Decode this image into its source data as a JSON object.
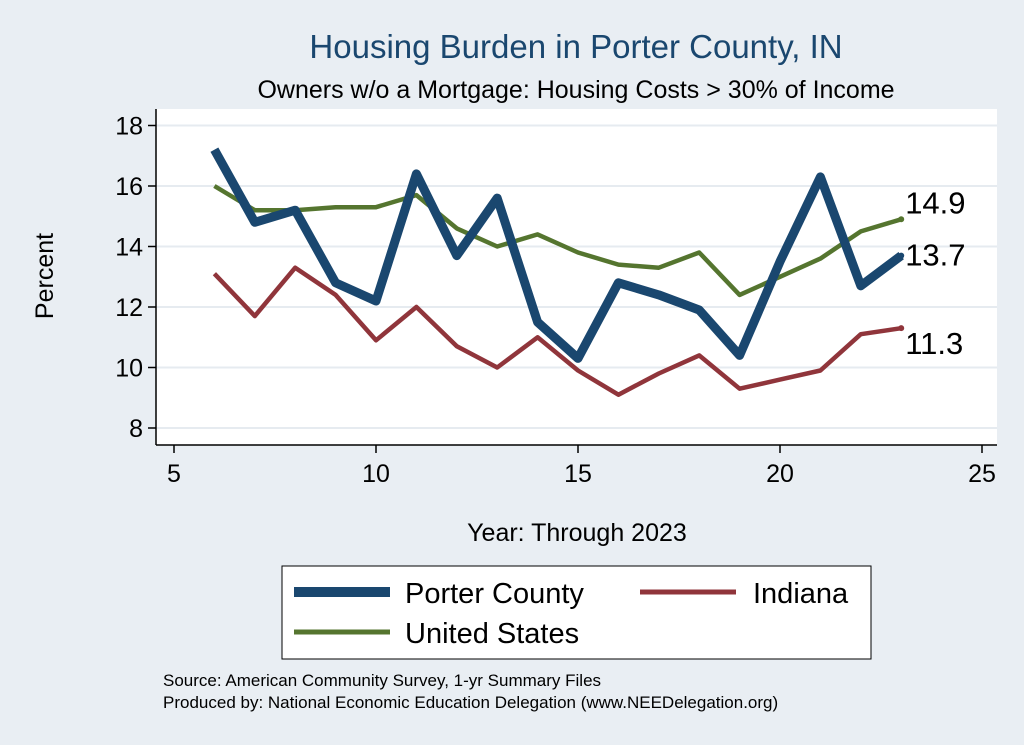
{
  "chart_data": {
    "type": "line",
    "title": "Housing Burden in Porter County, IN",
    "subtitle": "Owners w/o a Mortgage: Housing Costs > 30% of Income",
    "xlabel": "Year: Through 2023",
    "ylabel": "Percent",
    "xlim": [
      5,
      25
    ],
    "ylim": [
      7.5,
      18.5
    ],
    "xticks": [
      5,
      10,
      15,
      20,
      25
    ],
    "yticks": [
      8,
      10,
      12,
      14,
      16,
      18
    ],
    "grid": true,
    "x": [
      6,
      7,
      8,
      9,
      10,
      11,
      12,
      13,
      14,
      15,
      16,
      17,
      18,
      19,
      20,
      21,
      22,
      23
    ],
    "series": [
      {
        "name": "Porter County",
        "color": "#1a476f",
        "values": [
          17.2,
          14.8,
          15.2,
          12.8,
          12.2,
          16.4,
          13.7,
          15.6,
          11.5,
          10.3,
          12.8,
          12.4,
          11.9,
          10.4,
          13.5,
          16.3,
          12.7,
          13.7
        ],
        "end_label": "13.7"
      },
      {
        "name": "Indiana",
        "color": "#90353b",
        "values": [
          13.1,
          11.7,
          13.3,
          12.4,
          10.9,
          12.0,
          10.7,
          10.0,
          11.0,
          9.9,
          9.1,
          9.8,
          10.4,
          9.3,
          9.6,
          9.9,
          11.1,
          11.3
        ],
        "end_label": "11.3"
      },
      {
        "name": "United States",
        "color": "#55752f",
        "values": [
          16.0,
          15.2,
          15.2,
          15.3,
          15.3,
          15.7,
          14.6,
          14.0,
          14.4,
          13.8,
          13.4,
          13.3,
          13.8,
          12.4,
          13.0,
          13.6,
          14.5,
          14.9
        ],
        "end_label": "14.9"
      }
    ],
    "legend": {
      "placement": "bottom",
      "entries": [
        "Porter County",
        "Indiana",
        "United States"
      ]
    }
  },
  "notes": {
    "source": "Source: American Community Survey, 1-yr Summary Files",
    "produced_by": "Produced by: National Economic Education Delegation (www.NEEDelegation.org)"
  }
}
